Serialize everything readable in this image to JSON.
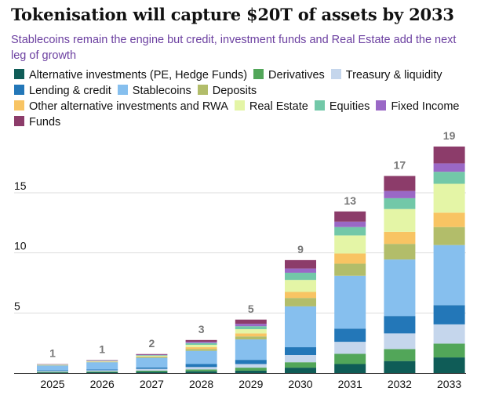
{
  "title": "Tokenisation will capture $20T of assets by 2033",
  "subtitle": "Stablecoins remain the engine but credit, investment funds and Real Estate add the next leg of growth",
  "chart_data": {
    "type": "bar",
    "stacked": true,
    "categories": [
      "2025",
      "2026",
      "2027",
      "2028",
      "2029",
      "2030",
      "2031",
      "2032",
      "2033"
    ],
    "totals_labels": [
      "1",
      "1",
      "2",
      "3",
      "5",
      "9",
      "13",
      "17",
      "19"
    ],
    "ylim": [
      0,
      19
    ],
    "yticks": [
      5,
      10,
      15
    ],
    "legend_position": "top",
    "series": [
      {
        "name": "Alternative investments (PE, Hedge Funds)",
        "color": "#0f5c57",
        "values": [
          0.05,
          0.07,
          0.1,
          0.15,
          0.2,
          0.45,
          0.75,
          1.0,
          1.3
        ]
      },
      {
        "name": "Derivatives",
        "color": "#52a659",
        "values": [
          0.05,
          0.06,
          0.1,
          0.15,
          0.25,
          0.45,
          0.85,
          1.0,
          1.15
        ]
      },
      {
        "name": "Treasury & liquidity",
        "color": "#c5d6ec",
        "values": [
          0.08,
          0.1,
          0.15,
          0.2,
          0.3,
          0.6,
          1.0,
          1.3,
          1.6
        ]
      },
      {
        "name": "Lending & credit",
        "color": "#2377b8",
        "values": [
          0.05,
          0.07,
          0.12,
          0.25,
          0.35,
          0.65,
          1.1,
          1.45,
          1.6
        ]
      },
      {
        "name": "Stablecoins",
        "color": "#86bfee",
        "values": [
          0.4,
          0.6,
          0.8,
          1.1,
          1.7,
          3.4,
          4.4,
          4.7,
          5.0
        ]
      },
      {
        "name": "Deposits",
        "color": "#b2bd6a",
        "values": [
          0.02,
          0.03,
          0.07,
          0.15,
          0.25,
          0.7,
          1.0,
          1.3,
          1.5
        ]
      },
      {
        "name": "Other alternative investments and RWA",
        "color": "#f8c463",
        "values": [
          0.02,
          0.03,
          0.05,
          0.15,
          0.25,
          0.5,
          0.85,
          1.0,
          1.2
        ]
      },
      {
        "name": "Real Estate",
        "color": "#e4f5a6",
        "values": [
          0.02,
          0.03,
          0.05,
          0.2,
          0.35,
          1.0,
          1.5,
          1.9,
          2.4
        ]
      },
      {
        "name": "Equities",
        "color": "#72c8a8",
        "values": [
          0.02,
          0.03,
          0.05,
          0.15,
          0.25,
          0.6,
          0.7,
          0.9,
          1.0
        ]
      },
      {
        "name": "Fixed Income",
        "color": "#9a68c6",
        "values": [
          0.02,
          0.03,
          0.04,
          0.1,
          0.2,
          0.35,
          0.45,
          0.6,
          0.7
        ]
      },
      {
        "name": "Funds",
        "color": "#8c3c6a",
        "values": [
          0.02,
          0.03,
          0.05,
          0.15,
          0.35,
          0.7,
          0.85,
          1.25,
          1.4
        ]
      }
    ]
  }
}
